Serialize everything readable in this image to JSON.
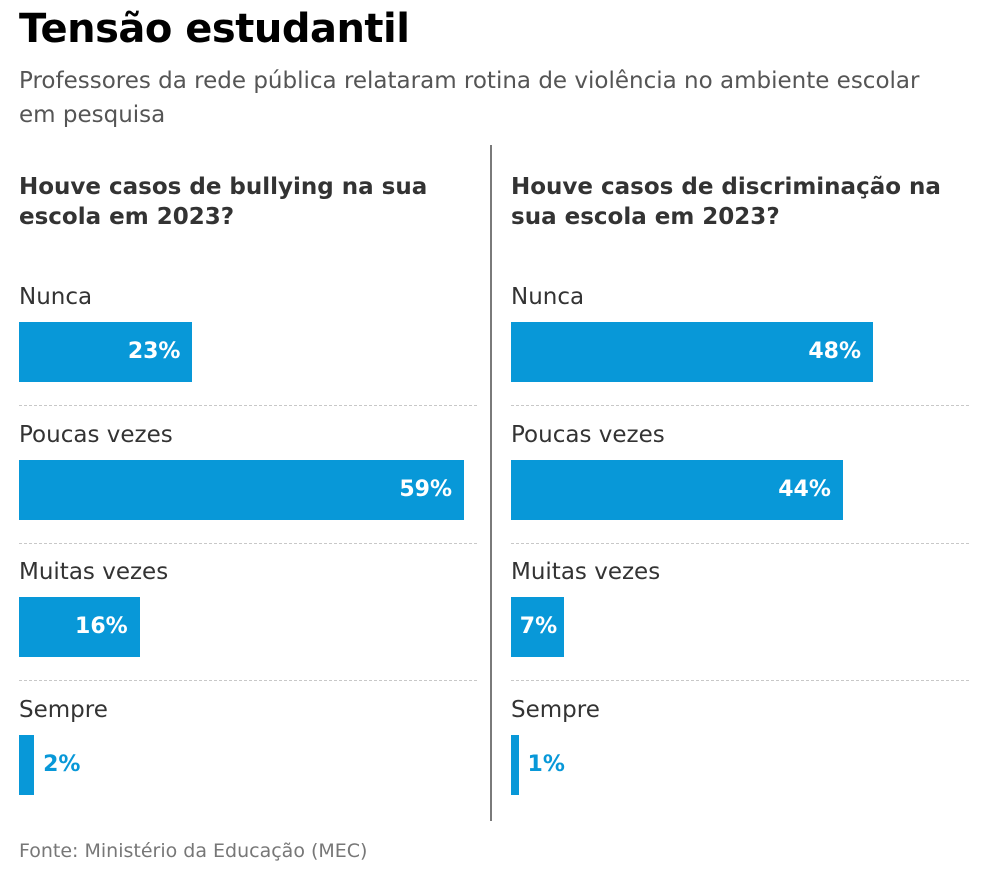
{
  "header": {
    "title": "Tensão estudantil",
    "subtitle": "Professores da rede pública relataram rotina de violência no ambiente escolar em pesquisa"
  },
  "source": "Fonte: Ministério da Educação (MEC)",
  "colors": {
    "bar": "#0898d8",
    "divider": "#7a7a7a"
  },
  "chart_data": [
    {
      "type": "bar",
      "orientation": "horizontal",
      "title": "Houve casos de bullying na sua escola em 2023?",
      "categories": [
        "Nunca",
        "Poucas vezes",
        "Muitas vezes",
        "Sempre"
      ],
      "values": [
        23,
        59,
        16,
        2
      ],
      "labels": [
        "23%",
        "59%",
        "16%",
        "2%"
      ],
      "unit": "%",
      "xlim": [
        0,
        59
      ],
      "grid": false
    },
    {
      "type": "bar",
      "orientation": "horizontal",
      "title": "Houve casos de discriminação na sua escola em 2023?",
      "categories": [
        "Nunca",
        "Poucas vezes",
        "Muitas vezes",
        "Sempre"
      ],
      "values": [
        48,
        44,
        7,
        1
      ],
      "labels": [
        "48%",
        "44%",
        "7%",
        "1%"
      ],
      "unit": "%",
      "xlim": [
        0,
        59
      ],
      "grid": false
    }
  ]
}
